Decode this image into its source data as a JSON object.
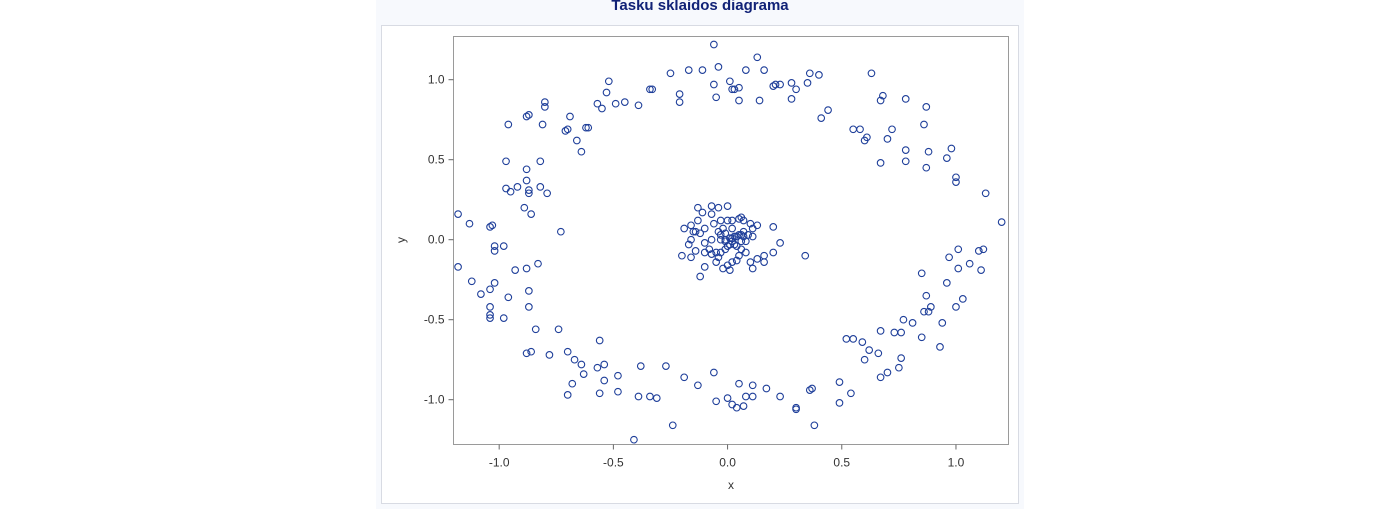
{
  "chart_data": {
    "type": "scatter",
    "title": "Tasku sklaidos diagrama",
    "xlabel": "x",
    "ylabel": "y",
    "xlim": [
      -1.2,
      1.23
    ],
    "ylim": [
      -1.28,
      1.27
    ],
    "x_ticks": [
      -1.0,
      -0.5,
      0.0,
      0.5,
      1.0
    ],
    "y_ticks": [
      -1.0,
      -0.5,
      0.0,
      0.5,
      1.0
    ],
    "x_tick_labels": [
      "-1.0",
      "-0.5",
      "0.0",
      "0.5",
      "1.0"
    ],
    "y_tick_labels": [
      "-1.0",
      "-0.5",
      "0.0",
      "0.5",
      "1.0"
    ],
    "grid": false,
    "marker": "open-circle",
    "marker_color": "#1f3f9a",
    "points": [
      [
        -0.06,
        1.22
      ],
      [
        -0.04,
        1.08
      ],
      [
        0.13,
        1.14
      ],
      [
        0.08,
        1.06
      ],
      [
        0.16,
        1.06
      ],
      [
        -0.11,
        1.06
      ],
      [
        -0.17,
        1.06
      ],
      [
        -0.25,
        1.04
      ],
      [
        -0.52,
        0.99
      ],
      [
        -0.06,
        0.97
      ],
      [
        -0.05,
        0.89
      ],
      [
        0.01,
        0.99
      ],
      [
        0.03,
        0.94
      ],
      [
        0.05,
        0.95
      ],
      [
        0.05,
        0.87
      ],
      [
        0.02,
        0.94
      ],
      [
        0.14,
        0.87
      ],
      [
        0.2,
        0.96
      ],
      [
        0.21,
        0.97
      ],
      [
        0.23,
        0.97
      ],
      [
        0.28,
        0.98
      ],
      [
        0.28,
        0.88
      ],
      [
        0.35,
        0.98
      ],
      [
        0.36,
        1.04
      ],
      [
        0.4,
        1.03
      ],
      [
        0.41,
        0.76
      ],
      [
        0.44,
        0.81
      ],
      [
        0.3,
        0.94
      ],
      [
        -0.21,
        0.91
      ],
      [
        -0.21,
        0.86
      ],
      [
        -0.33,
        0.94
      ],
      [
        -0.34,
        0.94
      ],
      [
        -0.39,
        0.84
      ],
      [
        -0.45,
        0.86
      ],
      [
        -0.49,
        0.85
      ],
      [
        -0.53,
        0.92
      ],
      [
        -0.55,
        0.82
      ],
      [
        -0.57,
        0.85
      ],
      [
        -0.61,
        0.7
      ],
      [
        -0.62,
        0.7
      ],
      [
        -0.64,
        0.55
      ],
      [
        -0.66,
        0.62
      ],
      [
        -0.69,
        0.77
      ],
      [
        -0.7,
        0.69
      ],
      [
        -0.71,
        0.68
      ],
      [
        -0.8,
        0.86
      ],
      [
        -0.8,
        0.83
      ],
      [
        -0.81,
        0.72
      ],
      [
        -0.87,
        0.78
      ],
      [
        -0.88,
        0.77
      ],
      [
        -0.96,
        0.72
      ],
      [
        -0.97,
        0.49
      ],
      [
        -0.82,
        0.49
      ],
      [
        -0.79,
        0.29
      ],
      [
        -0.82,
        0.33
      ],
      [
        -0.88,
        0.44
      ],
      [
        -0.88,
        0.37
      ],
      [
        -0.87,
        0.31
      ],
      [
        -0.87,
        0.29
      ],
      [
        -0.92,
        0.33
      ],
      [
        -0.95,
        0.3
      ],
      [
        -0.97,
        0.32
      ],
      [
        -0.89,
        0.2
      ],
      [
        -0.86,
        0.16
      ],
      [
        -0.73,
        0.05
      ],
      [
        -0.83,
        -0.15
      ],
      [
        -0.88,
        -0.18
      ],
      [
        -0.93,
        -0.19
      ],
      [
        -0.98,
        -0.04
      ],
      [
        -1.02,
        -0.04
      ],
      [
        -1.02,
        -0.07
      ],
      [
        -1.03,
        0.09
      ],
      [
        -1.04,
        0.08
      ],
      [
        -1.13,
        0.1
      ],
      [
        -1.18,
        0.16
      ],
      [
        -1.18,
        -0.17
      ],
      [
        -1.12,
        -0.26
      ],
      [
        -1.08,
        -0.34
      ],
      [
        -1.04,
        -0.31
      ],
      [
        -1.02,
        -0.27
      ],
      [
        -0.96,
        -0.36
      ],
      [
        -0.87,
        -0.32
      ],
      [
        -0.87,
        -0.42
      ],
      [
        -1.04,
        -0.42
      ],
      [
        -1.04,
        -0.47
      ],
      [
        -1.04,
        -0.49
      ],
      [
        -0.98,
        -0.49
      ],
      [
        -0.84,
        -0.56
      ],
      [
        -0.74,
        -0.56
      ],
      [
        -0.78,
        -0.72
      ],
      [
        -0.86,
        -0.7
      ],
      [
        -0.88,
        -0.71
      ],
      [
        -0.7,
        -0.7
      ],
      [
        -0.67,
        -0.75
      ],
      [
        -0.64,
        -0.78
      ],
      [
        -0.56,
        -0.63
      ],
      [
        -0.57,
        -0.8
      ],
      [
        -0.54,
        -0.78
      ],
      [
        -0.54,
        -0.88
      ],
      [
        -0.48,
        -0.85
      ],
      [
        -0.48,
        -0.95
      ],
      [
        -0.56,
        -0.96
      ],
      [
        -0.63,
        -0.84
      ],
      [
        -0.68,
        -0.9
      ],
      [
        -0.7,
        -0.97
      ],
      [
        -0.38,
        -0.79
      ],
      [
        -0.39,
        -0.98
      ],
      [
        -0.34,
        -0.98
      ],
      [
        -0.31,
        -0.99
      ],
      [
        -0.27,
        -0.79
      ],
      [
        -0.41,
        -1.25
      ],
      [
        -0.24,
        -1.16
      ],
      [
        -0.19,
        -0.86
      ],
      [
        -0.13,
        -0.91
      ],
      [
        -0.06,
        -0.83
      ],
      [
        -0.05,
        -1.01
      ],
      [
        0.0,
        -0.99
      ],
      [
        0.02,
        -1.03
      ],
      [
        0.04,
        -1.05
      ],
      [
        0.05,
        -0.9
      ],
      [
        0.07,
        -1.04
      ],
      [
        0.08,
        -0.98
      ],
      [
        0.11,
        -0.98
      ],
      [
        0.11,
        -0.91
      ],
      [
        0.17,
        -0.93
      ],
      [
        0.23,
        -0.98
      ],
      [
        0.3,
        -1.05
      ],
      [
        0.3,
        -1.06
      ],
      [
        0.36,
        -0.94
      ],
      [
        0.37,
        -0.93
      ],
      [
        0.38,
        -1.16
      ],
      [
        0.49,
        -0.89
      ],
      [
        0.49,
        -1.02
      ],
      [
        0.54,
        -0.96
      ],
      [
        0.55,
        -0.62
      ],
      [
        0.52,
        -0.62
      ],
      [
        0.59,
        -0.64
      ],
      [
        0.62,
        -0.69
      ],
      [
        0.6,
        -0.75
      ],
      [
        0.66,
        -0.71
      ],
      [
        0.67,
        -0.57
      ],
      [
        0.67,
        -0.86
      ],
      [
        0.7,
        -0.83
      ],
      [
        0.73,
        -0.58
      ],
      [
        0.76,
        -0.58
      ],
      [
        0.76,
        -0.74
      ],
      [
        0.75,
        -0.8
      ],
      [
        0.77,
        -0.5
      ],
      [
        0.81,
        -0.52
      ],
      [
        0.86,
        -0.45
      ],
      [
        0.88,
        -0.45
      ],
      [
        0.87,
        -0.35
      ],
      [
        0.89,
        -0.42
      ],
      [
        0.85,
        -0.21
      ],
      [
        0.85,
        -0.61
      ],
      [
        0.93,
        -0.67
      ],
      [
        0.94,
        -0.52
      ],
      [
        0.96,
        -0.27
      ],
      [
        1.0,
        -0.42
      ],
      [
        1.01,
        -0.18
      ],
      [
        1.03,
        -0.37
      ],
      [
        1.01,
        -0.06
      ],
      [
        0.97,
        -0.11
      ],
      [
        1.06,
        -0.15
      ],
      [
        1.1,
        -0.07
      ],
      [
        1.12,
        -0.06
      ],
      [
        1.11,
        -0.19
      ],
      [
        1.13,
        0.29
      ],
      [
        1.2,
        0.11
      ],
      [
        1.0,
        0.36
      ],
      [
        1.0,
        0.39
      ],
      [
        0.98,
        0.57
      ],
      [
        0.96,
        0.51
      ],
      [
        0.88,
        0.55
      ],
      [
        0.87,
        0.45
      ],
      [
        0.86,
        0.72
      ],
      [
        0.87,
        0.83
      ],
      [
        0.78,
        0.88
      ],
      [
        0.78,
        0.56
      ],
      [
        0.78,
        0.49
      ],
      [
        0.72,
        0.69
      ],
      [
        0.7,
        0.63
      ],
      [
        0.67,
        0.87
      ],
      [
        0.68,
        0.9
      ],
      [
        0.67,
        0.48
      ],
      [
        0.63,
        1.04
      ],
      [
        0.61,
        0.64
      ],
      [
        0.6,
        0.62
      ],
      [
        0.58,
        0.69
      ],
      [
        0.55,
        0.69
      ],
      [
        -0.07,
        0.16
      ],
      [
        -0.04,
        0.2
      ],
      [
        -0.07,
        0.21
      ],
      [
        0.0,
        0.21
      ],
      [
        -0.11,
        0.17
      ],
      [
        -0.13,
        0.2
      ],
      [
        -0.13,
        0.12
      ],
      [
        -0.16,
        0.09
      ],
      [
        -0.15,
        0.05
      ],
      [
        -0.19,
        0.07
      ],
      [
        -0.1,
        0.07
      ],
      [
        -0.06,
        0.1
      ],
      [
        -0.03,
        0.12
      ],
      [
        -0.04,
        0.05
      ],
      [
        0.0,
        0.12
      ],
      [
        0.02,
        0.12
      ],
      [
        0.02,
        0.07
      ],
      [
        0.05,
        0.13
      ],
      [
        0.06,
        0.14
      ],
      [
        0.07,
        0.12
      ],
      [
        0.07,
        0.05
      ],
      [
        0.1,
        0.1
      ],
      [
        0.13,
        0.09
      ],
      [
        0.2,
        0.08
      ],
      [
        -0.02,
        0.07
      ],
      [
        -0.01,
        0.04
      ],
      [
        -0.03,
        0.03
      ],
      [
        -0.03,
        0.0
      ],
      [
        -0.01,
        0.0
      ],
      [
        0.01,
        0.01
      ],
      [
        0.02,
        0.01
      ],
      [
        0.04,
        0.02
      ],
      [
        0.05,
        0.03
      ],
      [
        0.06,
        0.03
      ],
      [
        0.07,
        0.02
      ],
      [
        0.09,
        0.03
      ],
      [
        0.11,
        0.07
      ],
      [
        0.11,
        0.02
      ],
      [
        -0.07,
        0.0
      ],
      [
        -0.1,
        -0.02
      ],
      [
        -0.12,
        0.04
      ],
      [
        -0.14,
        0.05
      ],
      [
        -0.16,
        0.0
      ],
      [
        -0.17,
        -0.03
      ],
      [
        -0.2,
        -0.1
      ],
      [
        -0.16,
        -0.11
      ],
      [
        -0.14,
        -0.07
      ],
      [
        -0.1,
        -0.08
      ],
      [
        -0.08,
        -0.06
      ],
      [
        -0.07,
        -0.09
      ],
      [
        -0.05,
        -0.08
      ],
      [
        -0.03,
        -0.08
      ],
      [
        -0.01,
        -0.06
      ],
      [
        0.0,
        -0.04
      ],
      [
        0.01,
        -0.03
      ],
      [
        0.02,
        -0.01
      ],
      [
        0.03,
        -0.03
      ],
      [
        0.04,
        -0.04
      ],
      [
        0.06,
        -0.06
      ],
      [
        0.08,
        -0.08
      ],
      [
        0.05,
        -0.1
      ],
      [
        0.02,
        -0.14
      ],
      [
        0.0,
        -0.16
      ],
      [
        -0.02,
        -0.18
      ],
      [
        0.01,
        -0.19
      ],
      [
        0.04,
        -0.13
      ],
      [
        0.1,
        -0.14
      ],
      [
        0.11,
        -0.18
      ],
      [
        0.13,
        -0.12
      ],
      [
        0.16,
        -0.14
      ],
      [
        0.16,
        -0.1
      ],
      [
        0.2,
        -0.08
      ],
      [
        0.23,
        -0.02
      ],
      [
        0.34,
        -0.1
      ],
      [
        -0.12,
        -0.23
      ],
      [
        -0.1,
        -0.17
      ],
      [
        -0.04,
        -0.11
      ],
      [
        -0.05,
        -0.14
      ],
      [
        0.06,
        -0.01
      ],
      [
        0.08,
        -0.01
      ],
      [
        0.03,
        0.02
      ],
      [
        -0.01,
        -0.01
      ]
    ]
  }
}
